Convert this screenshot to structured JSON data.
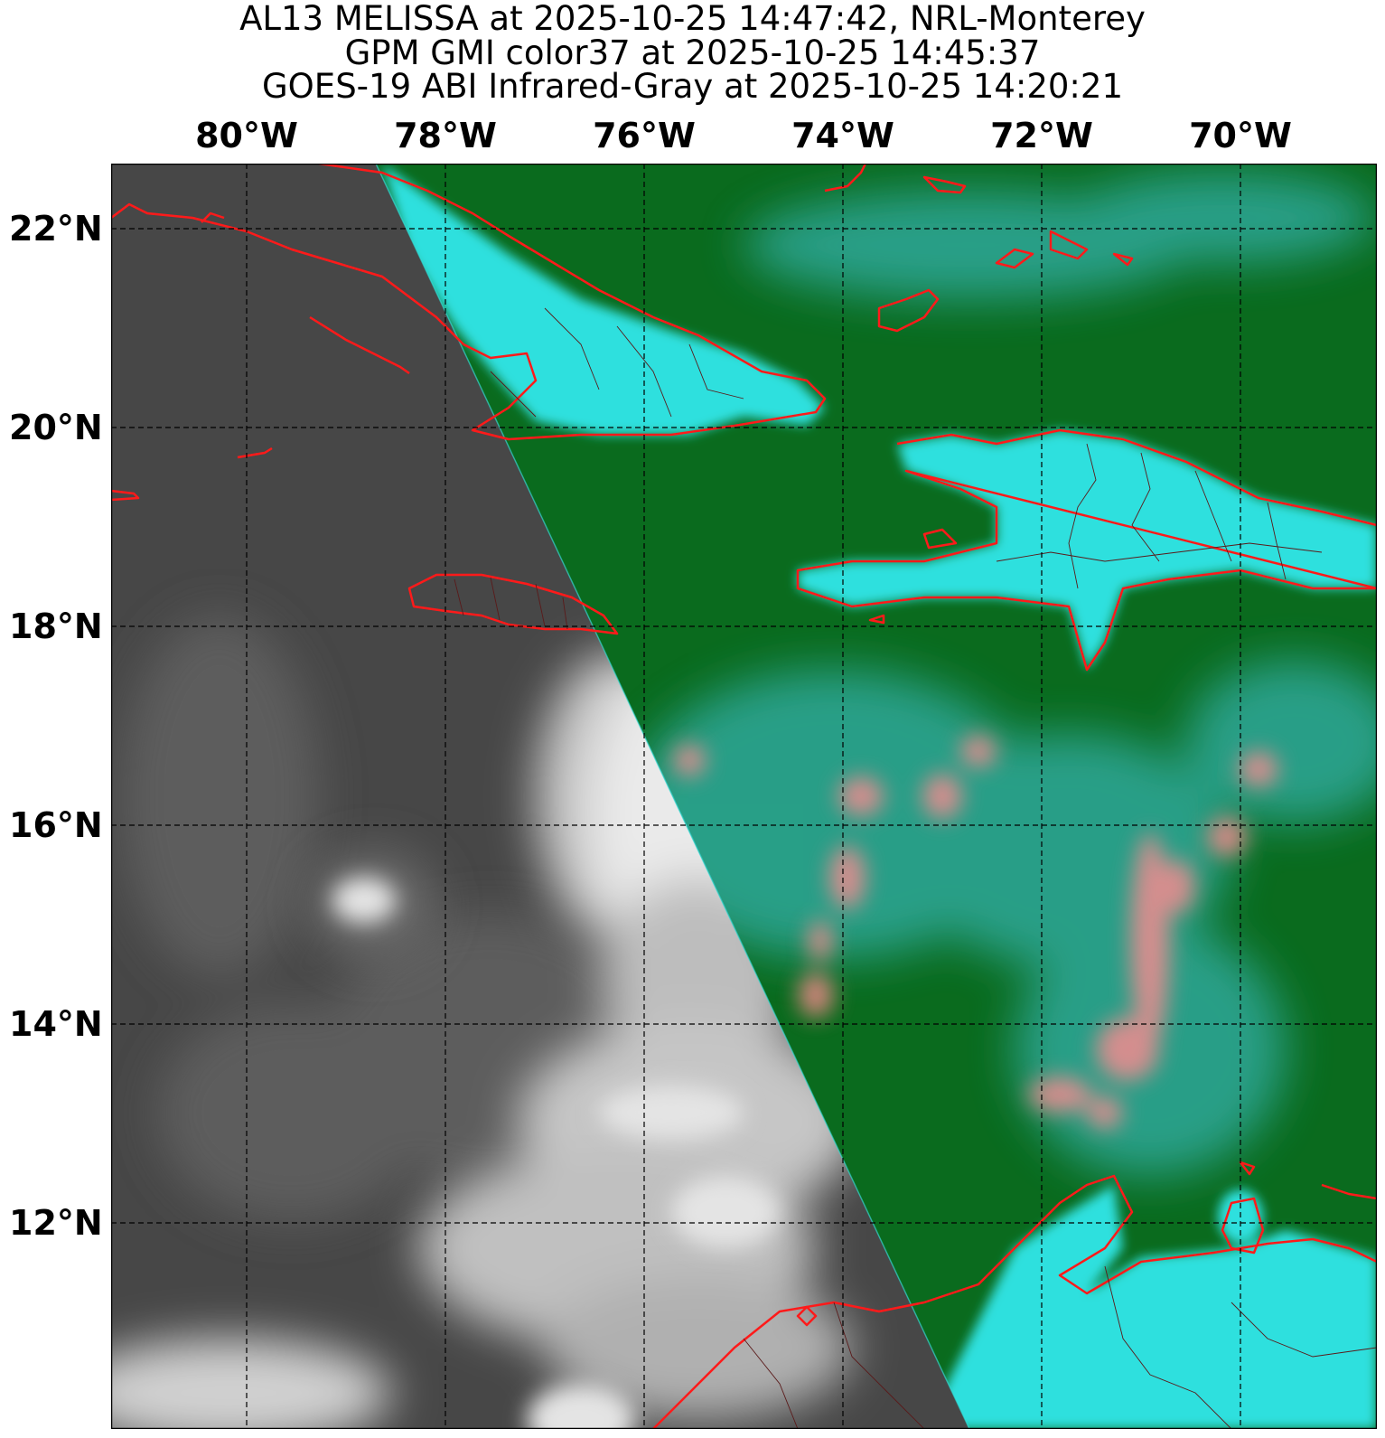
{
  "titles": {
    "line1": "AL13 MELISSA at 2025-10-25 14:47:42, NRL-Monterey",
    "line2": "GPM GMI color37 at 2025-10-25 14:45:37",
    "line3": "GOES-19 ABI Infrared-Gray at 2025-10-25 14:20:21"
  },
  "lon_labels": [
    "80°W",
    "78°W",
    "76°W",
    "74°W",
    "72°W",
    "70°W"
  ],
  "lat_labels": [
    "22°N",
    "20°N",
    "18°N",
    "16°N",
    "14°N",
    "12°N"
  ],
  "colors": {
    "coastline": "#ff1a1a",
    "borders": "#5a1a1a",
    "gridline": "#000000",
    "microwave_ocean": "#0a6b1e",
    "microwave_land": "#2ee0de",
    "microwave_rain": "#ff7f86",
    "ir_background": "#4a4a4a",
    "ir_cloud": "#f0f0f0"
  },
  "map": {
    "type": "satellite overlay map",
    "gridlines": "dashed black",
    "regions": [
      "Cuba",
      "Hispaniola",
      "Jamaica",
      "South America coast"
    ]
  }
}
